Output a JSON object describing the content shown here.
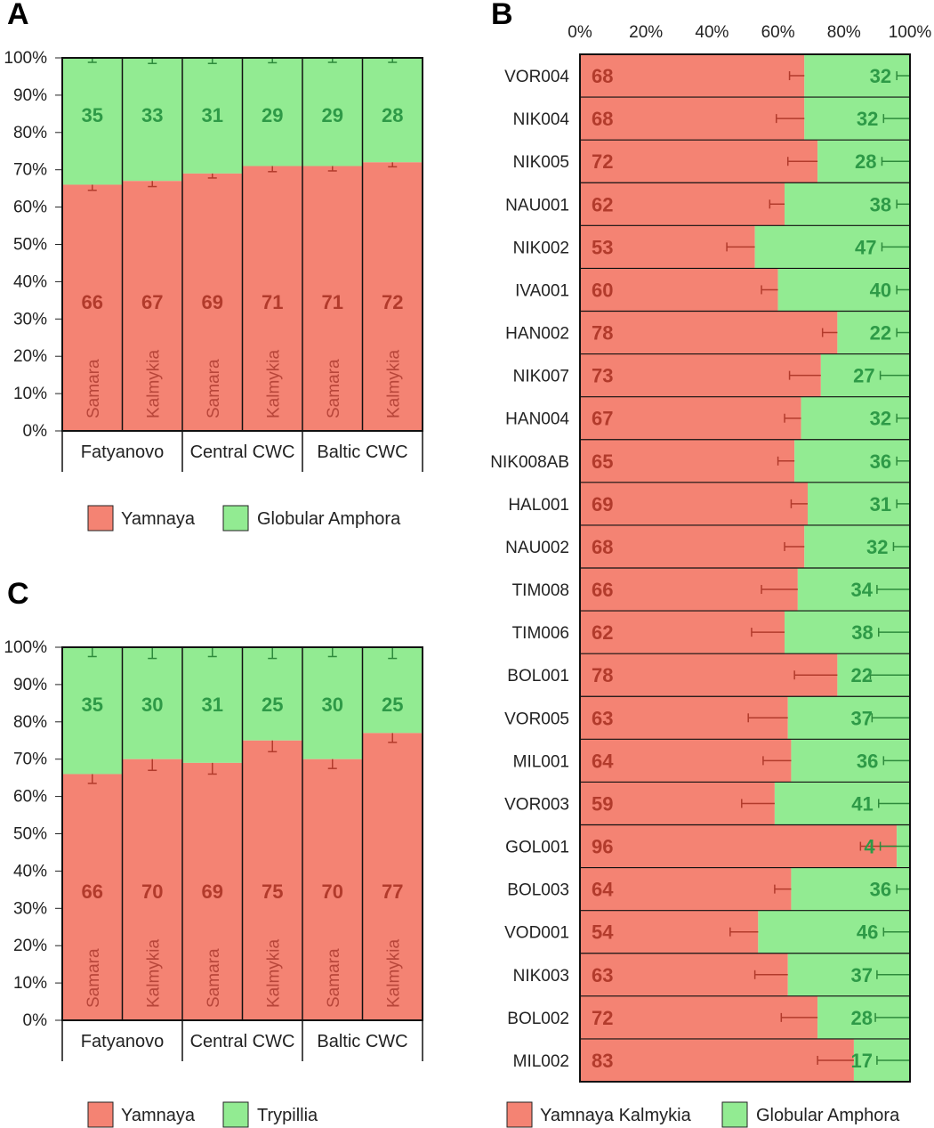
{
  "colors": {
    "yamnaya": "#f48373",
    "green": "#92eb92",
    "yamnaya_text": "#b23b2c",
    "green_text": "#2e9a47",
    "yamnaya_err": "#b23b2c",
    "green_err": "#2e8b3c"
  },
  "chart_data": [
    {
      "panel": "A",
      "type": "bar",
      "stacked": true,
      "ylim": [
        0,
        100
      ],
      "y_ticks": [
        "0%",
        "10%",
        "20%",
        "30%",
        "40%",
        "50%",
        "60%",
        "70%",
        "80%",
        "90%",
        "100%"
      ],
      "categories": [
        "Samara",
        "Kalmykia",
        "Samara",
        "Kalmykia",
        "Samara",
        "Kalmykia"
      ],
      "groups": [
        "Fatyanovo",
        "Central CWC",
        "Baltic CWC"
      ],
      "series": [
        {
          "name": "Yamnaya",
          "values": [
            66,
            67,
            69,
            71,
            71,
            72
          ],
          "err": [
            1.5,
            1.5,
            1.2,
            1.5,
            1.3,
            1.2
          ]
        },
        {
          "name": "Globular Amphora",
          "values": [
            35,
            33,
            31,
            29,
            29,
            28
          ],
          "err": [
            1.2,
            1.5,
            1.5,
            1.3,
            1.2,
            1.2
          ]
        }
      ],
      "legend": [
        "Yamnaya",
        "Globular Amphora"
      ]
    },
    {
      "panel": "B",
      "type": "bar",
      "orientation": "horizontal",
      "stacked": true,
      "xlim": [
        0,
        100
      ],
      "x_ticks": [
        "0%",
        "20%",
        "40%",
        "60%",
        "80%",
        "100%"
      ],
      "categories": [
        "VOR004",
        "NIK004",
        "NIK005",
        "NAU001",
        "NIK002",
        "IVA001",
        "HAN002",
        "NIK007",
        "HAN004",
        "NIK008AB",
        "HAL001",
        "NAU002",
        "TIM008",
        "TIM006",
        "BOL001",
        "VOR005",
        "MIL001",
        "VOR003",
        "GOL001",
        "BOL003",
        "VOD001",
        "NIK003",
        "BOL002",
        "MIL002"
      ],
      "series": [
        {
          "name": "Yamnaya Kalmykia",
          "values": [
            68,
            68,
            72,
            62,
            53,
            60,
            78,
            73,
            67,
            65,
            69,
            68,
            66,
            62,
            78,
            63,
            64,
            59,
            96,
            64,
            54,
            63,
            72,
            83
          ],
          "err": [
            4.5,
            8.5,
            9,
            4.5,
            8.5,
            5,
            4.5,
            9.5,
            5,
            5,
            5,
            6,
            11,
            10,
            13,
            12,
            8.5,
            10,
            11,
            5,
            8.5,
            10,
            11,
            11
          ]
        },
        {
          "name": "Globular Amphora",
          "values": [
            32,
            32,
            28,
            38,
            47,
            40,
            22,
            27,
            32,
            36,
            31,
            32,
            34,
            38,
            22,
            37,
            36,
            41,
            4,
            36,
            46,
            37,
            28,
            17
          ],
          "err": [
            4,
            8,
            8.5,
            4,
            8.5,
            4,
            4,
            9,
            4,
            4,
            4,
            5,
            10,
            9.5,
            12,
            11.5,
            8,
            9.5,
            9,
            4,
            8,
            10,
            10.5,
            10
          ]
        }
      ],
      "legend": [
        "Yamnaya Kalmykia",
        "Globular Amphora"
      ]
    },
    {
      "panel": "C",
      "type": "bar",
      "stacked": true,
      "ylim": [
        0,
        100
      ],
      "y_ticks": [
        "0%",
        "10%",
        "20%",
        "30%",
        "40%",
        "50%",
        "60%",
        "70%",
        "80%",
        "90%",
        "100%"
      ],
      "categories": [
        "Samara",
        "Kalmykia",
        "Samara",
        "Kalmykia",
        "Samara",
        "Kalmykia"
      ],
      "groups": [
        "Fatyanovo",
        "Central CWC",
        "Baltic CWC"
      ],
      "series": [
        {
          "name": "Yamnaya",
          "values": [
            66,
            70,
            69,
            75,
            70,
            77
          ],
          "err": [
            2.5,
            3,
            3,
            3,
            2.5,
            2.5
          ]
        },
        {
          "name": "Trypillia",
          "values": [
            35,
            30,
            31,
            25,
            30,
            25
          ],
          "err": [
            2.5,
            3,
            2.5,
            3,
            2.5,
            3
          ]
        }
      ],
      "legend": [
        "Yamnaya",
        "Trypillia"
      ]
    }
  ]
}
